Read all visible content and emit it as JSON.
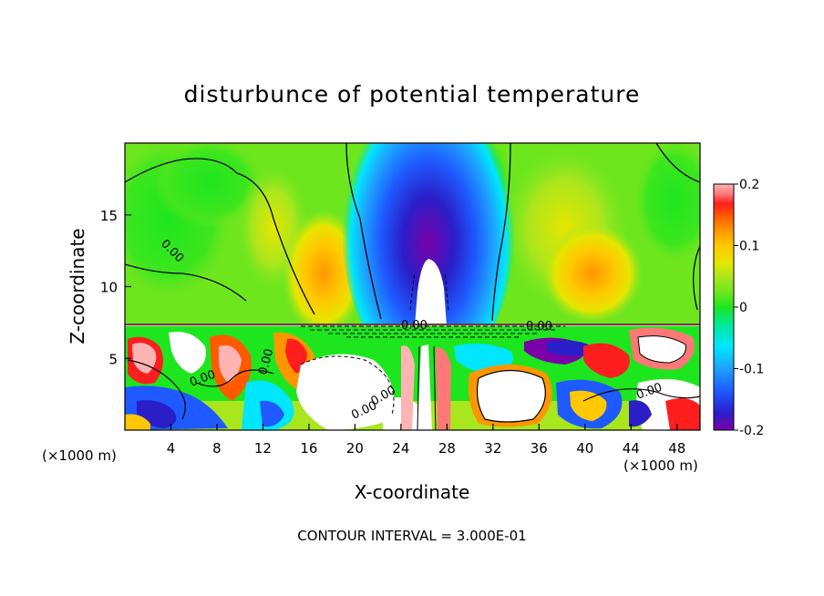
{
  "chart_data": {
    "type": "heatmap",
    "title": "disturbunce of potential temperature",
    "xlabel": "X-coordinate",
    "ylabel": "Z-coordinate",
    "x_unit": "(×1000 m)",
    "y_unit": "(×1000 m)",
    "xlim": [
      0,
      50
    ],
    "ylim": [
      0,
      20
    ],
    "xticks": [
      4,
      8,
      12,
      16,
      20,
      24,
      28,
      32,
      36,
      40,
      44,
      48
    ],
    "yticks": [
      5,
      10,
      15
    ],
    "colorbar": {
      "range": [
        -0.2,
        0.2
      ],
      "tick_values": [
        0.2,
        0.1,
        0,
        -0.1,
        -0.2
      ],
      "tick_labels": [
        "0.2",
        "0.1",
        "0",
        "-0.1",
        "-0.2"
      ]
    },
    "contour_interval_text": "CONTOUR INTERVAL = 3.000E-01",
    "contour_labels": [
      "0.00",
      "0.00",
      "0.00",
      "0.00",
      "0.00",
      "0.00",
      "0.00",
      "0.00"
    ],
    "field_note": "Upper layer (z > 7.5) mostly 0 to +0.1 with a strong negative plume (~-0.2) centred near x = 27; lower layer (z < 7.5) highly turbulent with values beyond the colour range.",
    "colors": {
      "scale": [
        "#7a00a8",
        "#2a1ec8",
        "#1e5aff",
        "#1ea0ff",
        "#00e6ff",
        "#00e896",
        "#1ee61e",
        "#6ee61e",
        "#a8e61e",
        "#e6e600",
        "#ffc800",
        "#ff9600",
        "#ff5a00",
        "#ff1e1e",
        "#ff7878",
        "#ffb4b4"
      ]
    }
  }
}
